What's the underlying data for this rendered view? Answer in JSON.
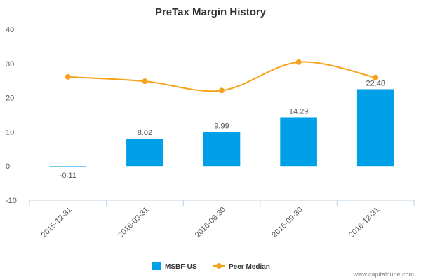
{
  "chart_data": {
    "type": "bar",
    "title": "PreTax Margin History",
    "categories": [
      "2015-12-31",
      "2016-03-31",
      "2016-06-30",
      "2016-09-30",
      "2016-12-31"
    ],
    "series": [
      {
        "name": "MSBF-US",
        "type": "bar",
        "values": [
          -0.11,
          8.02,
          9.99,
          14.29,
          22.48
        ],
        "labels": [
          "-0.11",
          "8.02",
          "9.99",
          "14.29",
          "22.48"
        ]
      },
      {
        "name": "Peer Median",
        "type": "line",
        "smooth": true,
        "values": [
          26.1,
          24.8,
          22.1,
          30.4,
          25.9
        ]
      }
    ],
    "ylim": [
      -10,
      40
    ],
    "yticks": [
      -10,
      0,
      10,
      20,
      30,
      40
    ],
    "grid": false,
    "legend": "bottom-center",
    "colors": {
      "bar": "#00a0e8",
      "line": "#f7a21b"
    }
  },
  "footer": {
    "source": "www.capitalcube.com"
  }
}
